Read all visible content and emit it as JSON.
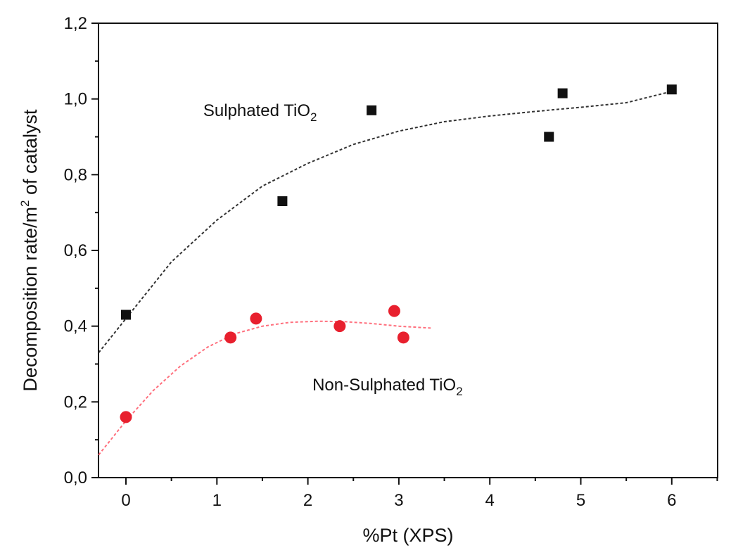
{
  "chart_data": {
    "type": "scatter",
    "title": "",
    "xlabel": "%Pt (XPS)",
    "ylabel": "Decomposition rate/m",
    "ylabel_sup": "2",
    "ylabel_suffix": " of catalyst",
    "xlim": [
      -0.3,
      6.5
    ],
    "ylim": [
      0.0,
      1.2
    ],
    "xticks": [
      0,
      1,
      2,
      3,
      4,
      5,
      6
    ],
    "xtick_labels": [
      "0",
      "1",
      "2",
      "3",
      "4",
      "5",
      "6"
    ],
    "yticks": [
      0.0,
      0.2,
      0.4,
      0.6,
      0.8,
      1.0,
      1.2
    ],
    "ytick_labels": [
      "0,0",
      "0,2",
      "0,4",
      "0,6",
      "0,8",
      "1,0",
      "1,2"
    ],
    "grid": false,
    "series": [
      {
        "marker": "square",
        "color": "#111111",
        "points": [
          {
            "x": 0.0,
            "y": 0.43
          },
          {
            "x": 1.72,
            "y": 0.73
          },
          {
            "x": 2.7,
            "y": 0.97
          },
          {
            "x": 4.65,
            "y": 0.9
          },
          {
            "x": 4.8,
            "y": 1.015
          },
          {
            "x": 6.0,
            "y": 1.025
          }
        ],
        "fit": {
          "color": "#333333",
          "points": [
            [
              -0.3,
              0.33
            ],
            [
              0.0,
              0.42
            ],
            [
              0.5,
              0.57
            ],
            [
              1.0,
              0.68
            ],
            [
              1.5,
              0.77
            ],
            [
              2.0,
              0.83
            ],
            [
              2.5,
              0.88
            ],
            [
              3.0,
              0.915
            ],
            [
              3.5,
              0.94
            ],
            [
              4.0,
              0.955
            ],
            [
              4.5,
              0.967
            ],
            [
              5.0,
              0.978
            ],
            [
              5.5,
              0.99
            ],
            [
              6.0,
              1.02
            ]
          ]
        }
      },
      {
        "marker": "circle",
        "color": "#e8202e",
        "points": [
          {
            "x": 0.0,
            "y": 0.16
          },
          {
            "x": 1.15,
            "y": 0.37
          },
          {
            "x": 1.43,
            "y": 0.42
          },
          {
            "x": 2.35,
            "y": 0.4
          },
          {
            "x": 2.95,
            "y": 0.44
          },
          {
            "x": 3.05,
            "y": 0.37
          }
        ],
        "fit": {
          "color": "#ff6f7d",
          "points": [
            [
              -0.3,
              0.06
            ],
            [
              0.0,
              0.15
            ],
            [
              0.3,
              0.23
            ],
            [
              0.6,
              0.295
            ],
            [
              0.9,
              0.345
            ],
            [
              1.2,
              0.38
            ],
            [
              1.5,
              0.4
            ],
            [
              1.8,
              0.41
            ],
            [
              2.1,
              0.413
            ],
            [
              2.4,
              0.412
            ],
            [
              2.7,
              0.407
            ],
            [
              3.0,
              0.4
            ],
            [
              3.35,
              0.395
            ]
          ]
        }
      }
    ],
    "annotations": [
      {
        "text": "Sulphated TiO",
        "sub": "2",
        "x": 0.85,
        "y": 0.955
      },
      {
        "text": "Non-Sulphated TiO",
        "sub": "2",
        "x": 2.05,
        "y": 0.23
      }
    ]
  }
}
